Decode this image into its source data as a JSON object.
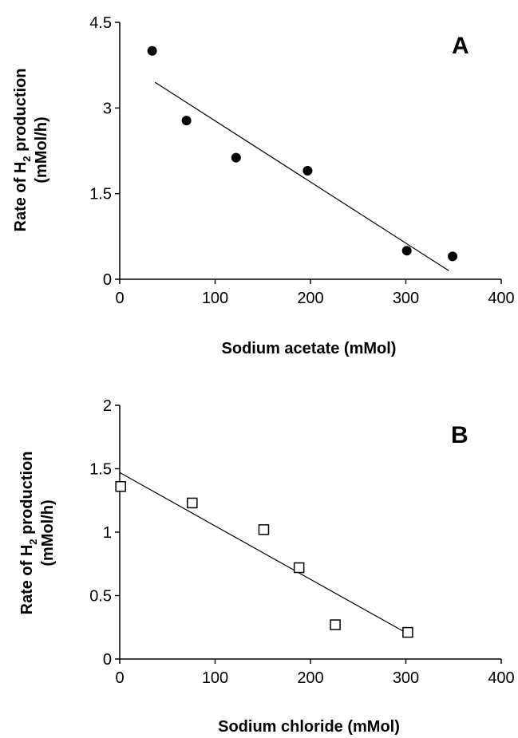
{
  "chart_data": [
    {
      "type": "scatter",
      "panel_label": "A",
      "xlabel": "Sodium acetate (mMol)",
      "ylabel": "Rate of H2 production (mMol/h)",
      "xlim": [
        0,
        400
      ],
      "ylim": [
        0,
        4.5
      ],
      "xticks": [
        "0",
        "100",
        "200",
        "300",
        "400"
      ],
      "yticks": [
        "0",
        "1.5",
        "3",
        "4.5"
      ],
      "marker": "filled-circle",
      "points": [
        {
          "x": 34,
          "y": 4.0
        },
        {
          "x": 70,
          "y": 2.78
        },
        {
          "x": 122,
          "y": 2.13
        },
        {
          "x": 197,
          "y": 1.9
        },
        {
          "x": 301,
          "y": 0.5
        },
        {
          "x": 349,
          "y": 0.4
        }
      ],
      "trendline": {
        "x": [
          37,
          345
        ],
        "y": [
          3.45,
          0.15
        ]
      }
    },
    {
      "type": "scatter",
      "panel_label": "B",
      "xlabel": "Sodium chloride (mMol)",
      "ylabel": "Rate of H2 production (mMol/h)",
      "xlim": [
        0,
        400
      ],
      "ylim": [
        0,
        2
      ],
      "xticks": [
        "0",
        "100",
        "200",
        "300",
        "400"
      ],
      "yticks": [
        "0",
        "0.5",
        "1",
        "1.5",
        "2"
      ],
      "marker": "open-square",
      "points": [
        {
          "x": 1,
          "y": 1.36
        },
        {
          "x": 76,
          "y": 1.23
        },
        {
          "x": 151,
          "y": 1.02
        },
        {
          "x": 188,
          "y": 0.72
        },
        {
          "x": 226,
          "y": 0.27
        },
        {
          "x": 302,
          "y": 0.21
        }
      ],
      "trendline": {
        "x": [
          0,
          297
        ],
        "y": [
          1.47,
          0.22
        ]
      }
    }
  ]
}
